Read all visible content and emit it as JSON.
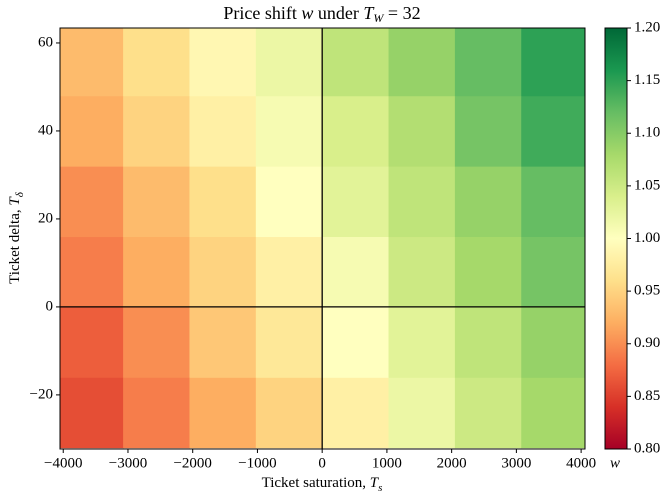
{
  "chart_data": {
    "type": "heatmap",
    "title_parts": [
      "Price shift ",
      "w",
      " under ",
      "T",
      "W",
      " = 32"
    ],
    "xlabel_parts": [
      "Ticket saturation,  ",
      "T",
      "s"
    ],
    "ylabel_parts": [
      "Ticket delta,  ",
      "T",
      "δ"
    ],
    "colorbar_label": "w",
    "colormap": "RdYlGn",
    "clim": [
      0.8,
      1.2
    ],
    "cticks": [
      {
        "value": 0.8,
        "label": "0.80"
      },
      {
        "value": 0.85,
        "label": "0.85"
      },
      {
        "value": 0.9,
        "label": "0.90"
      },
      {
        "value": 0.95,
        "label": "0.95"
      },
      {
        "value": 1.0,
        "label": "1.00"
      },
      {
        "value": 1.05,
        "label": "1.05"
      },
      {
        "value": 1.1,
        "label": "1.10"
      },
      {
        "value": 1.15,
        "label": "1.15"
      },
      {
        "value": 1.2,
        "label": "1.20"
      }
    ],
    "x": [
      -3587.5,
      -2562.5,
      -1537.5,
      -512.5,
      512.5,
      1537.5,
      2562.5,
      3587.5
    ],
    "y": [
      -24,
      -8,
      8,
      24,
      40,
      56
    ],
    "z": [
      [
        0.86,
        0.89,
        0.92,
        0.95,
        0.98,
        1.02,
        1.05,
        1.08
      ],
      [
        0.87,
        0.9,
        0.94,
        0.97,
        1.0,
        1.03,
        1.06,
        1.09
      ],
      [
        0.89,
        0.92,
        0.95,
        0.98,
        1.01,
        1.05,
        1.08,
        1.11
      ],
      [
        0.9,
        0.93,
        0.96,
        1.0,
        1.03,
        1.06,
        1.09,
        1.12
      ],
      [
        0.92,
        0.95,
        0.98,
        1.01,
        1.04,
        1.07,
        1.11,
        1.14
      ],
      [
        0.93,
        0.96,
        0.99,
        1.02,
        1.06,
        1.09,
        1.12,
        1.15
      ]
    ],
    "xlim": [
      -4050,
      4060
    ],
    "ylim": [
      -32.3,
      63.4
    ],
    "xticks": [
      {
        "value": -4000,
        "label": "−4000"
      },
      {
        "value": -3000,
        "label": "−3000"
      },
      {
        "value": -2000,
        "label": "−2000"
      },
      {
        "value": -1000,
        "label": "−1000"
      },
      0,
      1000,
      2000,
      3000,
      4000
    ],
    "yticks": [
      {
        "value": -20,
        "label": "−20"
      },
      0,
      20,
      40,
      60
    ],
    "vlines": [
      0
    ],
    "hlines": [
      0
    ]
  }
}
